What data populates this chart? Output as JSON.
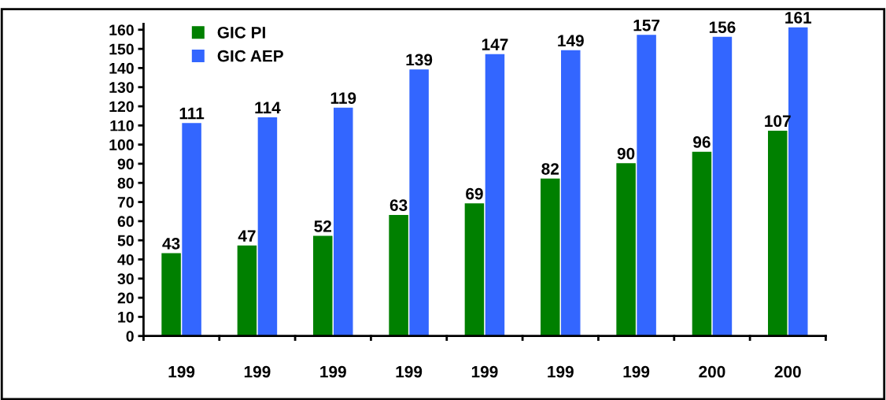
{
  "chart_data": {
    "type": "bar",
    "categories": [
      "199",
      "199",
      "199",
      "199",
      "199",
      "199",
      "199",
      "200",
      "200"
    ],
    "series": [
      {
        "name": "GIC PI",
        "color": "#008000",
        "values": [
          43,
          47,
          52,
          63,
          69,
          82,
          90,
          96,
          107
        ]
      },
      {
        "name": "GIC AEP",
        "color": "#3366ff",
        "values": [
          111,
          114,
          119,
          139,
          147,
          149,
          157,
          156,
          161
        ]
      }
    ],
    "ylim": [
      0,
      163
    ],
    "yticks": [
      0,
      10,
      20,
      30,
      40,
      50,
      60,
      70,
      80,
      90,
      100,
      110,
      120,
      130,
      140,
      150,
      160
    ],
    "data_labels": true,
    "legend": "top left",
    "grid": false
  }
}
